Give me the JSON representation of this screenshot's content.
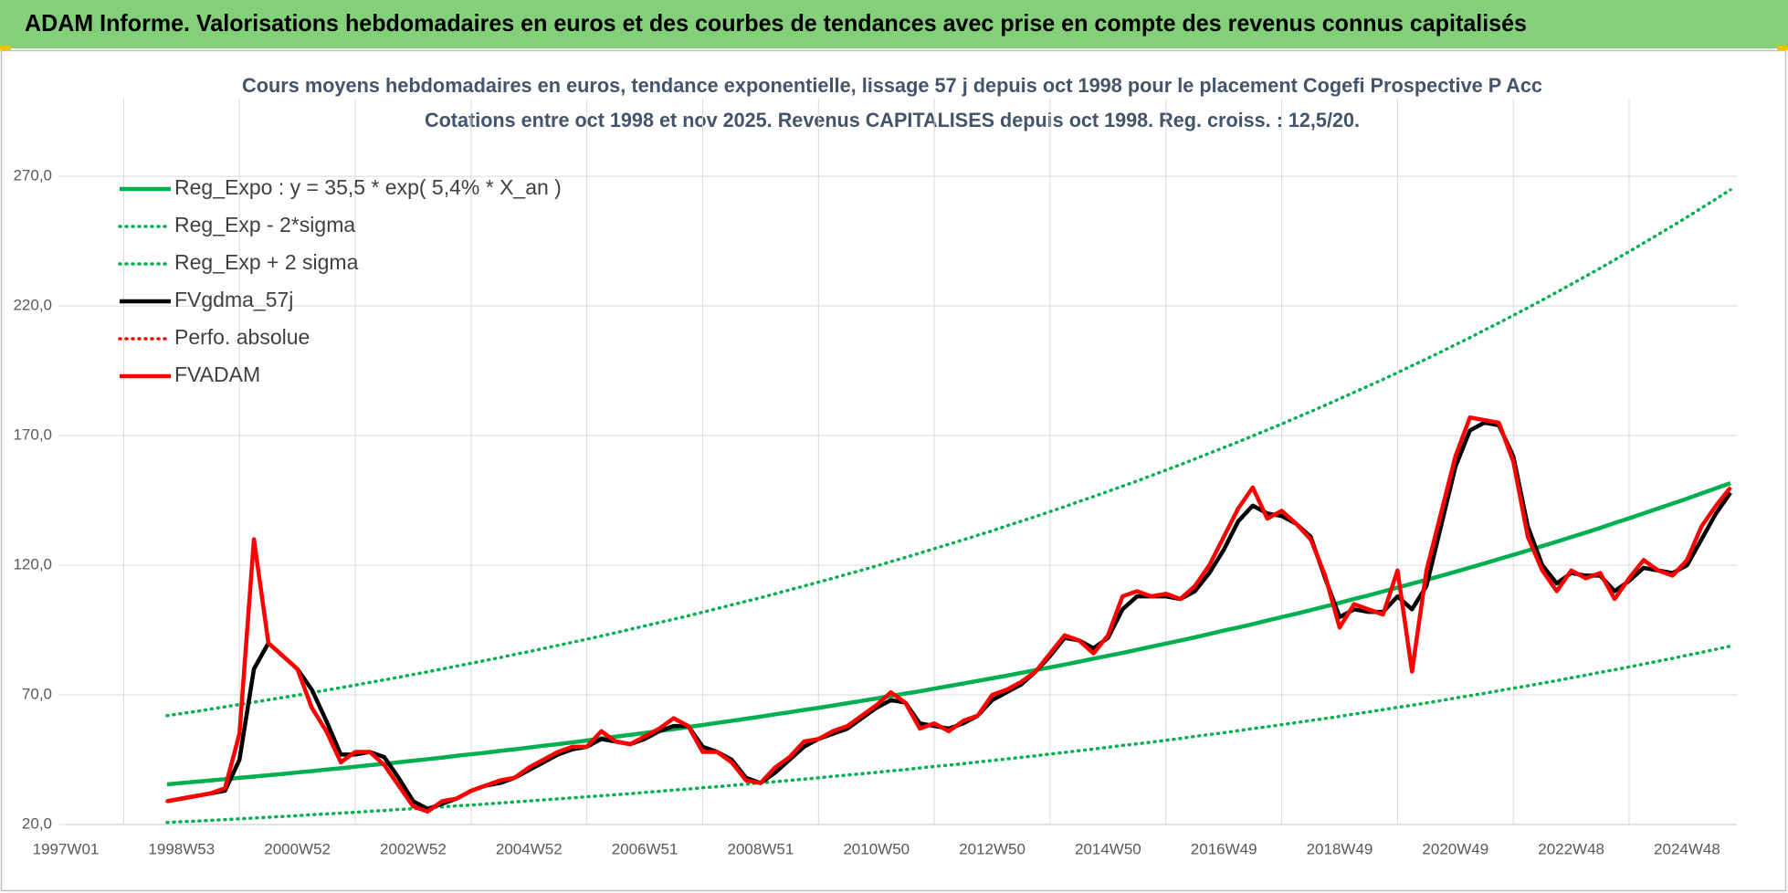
{
  "header": {
    "title": "ADAM Informe. Valorisations hebdomadaires en euros et des courbes de tendances avec prise en compte des revenus connus capitalisés"
  },
  "chart_data": {
    "type": "line",
    "title": "Cours moyens hebdomadaires en euros, tendance exponentielle, lissage 57 j depuis oct 1998 pour le placement Cogefi Prospective P Acc",
    "subtitle": "Cotations entre oct 1998 et nov 2025. Revenus CAPITALISES depuis oct 1998. Reg. croiss. : 12,5/20.",
    "categories": [
      "1997W01",
      null,
      null,
      null,
      null,
      null,
      null,
      null,
      "1998W53",
      null,
      null,
      null,
      null,
      null,
      null,
      null,
      "2000W52",
      null,
      null,
      null,
      null,
      null,
      null,
      null,
      "2002W52",
      null,
      null,
      null,
      null,
      null,
      null,
      null,
      "2004W52",
      null,
      null,
      null,
      null,
      null,
      null,
      null,
      "2006W51",
      null,
      null,
      null,
      null,
      null,
      null,
      null,
      "2008W51",
      null,
      null,
      null,
      null,
      null,
      null,
      null,
      "2010W50",
      null,
      null,
      null,
      null,
      null,
      null,
      null,
      "2012W50",
      null,
      null,
      null,
      null,
      null,
      null,
      null,
      "2014W50",
      null,
      null,
      null,
      null,
      null,
      null,
      null,
      "2016W49",
      null,
      null,
      null,
      null,
      null,
      null,
      null,
      "2018W49",
      null,
      null,
      null,
      null,
      null,
      null,
      null,
      "2020W49",
      null,
      null,
      null,
      null,
      null,
      null,
      null,
      "2022W48",
      null,
      null,
      null,
      null,
      null,
      null,
      null,
      "2024W48",
      null,
      null,
      null
    ],
    "ylim": [
      20,
      300
    ],
    "yticks": [
      {
        "value": 20,
        "label": "20,0"
      },
      {
        "value": 70,
        "label": "70,0"
      },
      {
        "value": 120,
        "label": "120,0"
      },
      {
        "value": 170,
        "label": "170,0"
      },
      {
        "value": 220,
        "label": "220,0"
      },
      {
        "value": 270,
        "label": "270,0"
      }
    ],
    "grid": true,
    "legend": "upper left",
    "series": [
      {
        "name": "Reg_Expo : y = 35,5 * exp( 5,4% *  X_an )",
        "color": "#00b050",
        "style": "solid",
        "values": [
          null,
          null,
          null,
          null,
          null,
          null,
          null,
          35.5,
          36.0,
          36.5,
          37.0,
          37.5,
          38.0,
          38.5,
          39.0,
          39.5,
          40.1,
          40.6,
          41.2,
          41.7,
          42.3,
          42.9,
          43.4,
          44.0,
          44.6,
          45.2,
          45.8,
          46.5,
          47.1,
          47.7,
          48.4,
          49.0,
          49.7,
          50.4,
          51.0,
          51.7,
          52.4,
          53.2,
          53.9,
          54.6,
          55.3,
          56.1,
          56.8,
          57.6,
          58.4,
          59.2,
          60.0,
          60.8,
          61.6,
          62.5,
          63.3,
          64.2,
          65.0,
          65.9,
          66.8,
          67.7,
          68.6,
          69.6,
          70.5,
          71.4,
          72.4,
          73.4,
          74.4,
          75.4,
          76.4,
          77.4,
          78.5,
          79.6,
          80.6,
          81.7,
          82.8,
          84.0,
          85.1,
          86.2,
          87.4,
          88.6,
          89.8,
          91.0,
          92.2,
          93.5,
          94.8,
          96.0,
          97.3,
          98.7,
          100.0,
          101.3,
          102.7,
          104.1,
          105.5,
          107.0,
          108.4,
          109.9,
          111.4,
          112.9,
          114.4,
          115.9,
          117.5,
          119.1,
          120.7,
          122.4,
          124.0,
          125.7,
          127.4,
          129.1,
          130.9,
          132.6,
          134.4,
          136.3,
          138.1,
          140.0,
          141.9,
          143.8,
          145.7,
          147.7,
          149.7,
          151.7
        ]
      },
      {
        "name": "Reg_Exp - 2*sigma",
        "color": "#00b050",
        "style": "dotted",
        "values": [
          null,
          null,
          null,
          null,
          null,
          null,
          null,
          20.8,
          21.1,
          21.3,
          21.6,
          21.9,
          22.2,
          22.5,
          22.8,
          23.1,
          23.4,
          23.8,
          24.1,
          24.4,
          24.7,
          25.1,
          25.4,
          25.8,
          26.1,
          26.5,
          26.8,
          27.2,
          27.5,
          27.9,
          28.3,
          28.7,
          29.1,
          29.5,
          29.9,
          30.3,
          30.7,
          31.1,
          31.5,
          31.9,
          32.4,
          32.8,
          33.3,
          33.7,
          34.2,
          34.6,
          35.1,
          35.6,
          36.1,
          36.5,
          37.0,
          37.5,
          38.0,
          38.6,
          39.1,
          39.6,
          40.1,
          40.7,
          41.2,
          41.8,
          42.4,
          42.9,
          43.5,
          44.1,
          44.7,
          45.3,
          45.9,
          46.5,
          47.2,
          47.8,
          48.5,
          49.1,
          49.8,
          50.5,
          51.1,
          51.8,
          52.5,
          53.2,
          54.0,
          54.7,
          55.4,
          56.2,
          57.0,
          57.7,
          58.5,
          59.3,
          60.1,
          60.9,
          61.7,
          62.6,
          63.4,
          64.3,
          65.2,
          66.0,
          66.9,
          67.8,
          68.8,
          69.7,
          70.6,
          71.6,
          72.6,
          73.5,
          74.5,
          75.5,
          76.6,
          77.6,
          78.7,
          79.7,
          80.8,
          81.9,
          83.0,
          84.1,
          85.3,
          86.4,
          87.6,
          88.8
        ]
      },
      {
        "name": "Reg_Exp + 2 sigma",
        "color": "#00b050",
        "style": "dotted",
        "values": [
          null,
          null,
          null,
          null,
          null,
          null,
          null,
          62.0,
          62.8,
          63.6,
          64.5,
          65.4,
          66.3,
          67.2,
          68.1,
          69.0,
          69.9,
          70.9,
          71.8,
          72.8,
          73.8,
          74.8,
          75.8,
          76.8,
          77.9,
          78.9,
          80.0,
          81.1,
          82.2,
          83.3,
          84.4,
          85.6,
          86.7,
          87.9,
          89.1,
          90.3,
          91.5,
          92.7,
          94.0,
          95.3,
          96.6,
          97.9,
          99.2,
          100.5,
          101.9,
          103.3,
          104.7,
          106.1,
          107.5,
          109.0,
          110.5,
          112.0,
          113.5,
          115.0,
          116.6,
          118.1,
          119.7,
          121.4,
          123.0,
          124.7,
          126.4,
          128.1,
          129.8,
          131.6,
          133.3,
          135.2,
          137.0,
          138.8,
          140.7,
          142.6,
          144.6,
          146.5,
          148.5,
          150.5,
          152.5,
          154.6,
          156.7,
          158.8,
          161.0,
          163.2,
          165.4,
          167.6,
          169.9,
          172.2,
          174.5,
          176.9,
          179.3,
          181.7,
          184.2,
          186.7,
          189.2,
          191.7,
          194.3,
          197.0,
          199.6,
          202.3,
          205.1,
          207.8,
          210.7,
          213.5,
          216.4,
          219.3,
          222.3,
          225.3,
          228.4,
          231.5,
          234.6,
          237.8,
          241.0,
          244.3,
          247.6,
          250.9,
          254.3,
          257.8,
          261.3,
          264.8
        ]
      },
      {
        "name": "FVgdma_57j",
        "color": "#000000",
        "style": "solid",
        "values": [
          null,
          null,
          null,
          null,
          null,
          null,
          null,
          29,
          30,
          31,
          32,
          33,
          45,
          80,
          90,
          85,
          80,
          72,
          60,
          47,
          47,
          48,
          46,
          38,
          29,
          26,
          28,
          30,
          33,
          35,
          36,
          38,
          41,
          44,
          47,
          49,
          50,
          53,
          52,
          51,
          53,
          56,
          58,
          58,
          50,
          48,
          45,
          38,
          36,
          40,
          45,
          50,
          53,
          55,
          57,
          61,
          65,
          68,
          67,
          59,
          58,
          57,
          59,
          62,
          68,
          71,
          74,
          79,
          85,
          92,
          91,
          88,
          92,
          103,
          108,
          108,
          108,
          107,
          110,
          117,
          126,
          137,
          143,
          140,
          139,
          136,
          131,
          115,
          100,
          103,
          102,
          102,
          108,
          103,
          112,
          135,
          158,
          172,
          175,
          174,
          162,
          135,
          120,
          113,
          117,
          116,
          116,
          110,
          114,
          119,
          118,
          117,
          120,
          130,
          140,
          148
        ]
      },
      {
        "name": "Perfo. absolue",
        "color": "#ff0000",
        "style": "dotted",
        "values": [
          null,
          null,
          null,
          null,
          null,
          null,
          null,
          29,
          30,
          31,
          32,
          34,
          55,
          130,
          90,
          85,
          80,
          65,
          56,
          44,
          48,
          48,
          43,
          35,
          27,
          25,
          29,
          30,
          33,
          35,
          37,
          38,
          42,
          45,
          48,
          50,
          50,
          56,
          52,
          51,
          54,
          57,
          61,
          58,
          48,
          48,
          44,
          37,
          36,
          42,
          46,
          52,
          53,
          56,
          58,
          62,
          66,
          71,
          67,
          57,
          59,
          56,
          60,
          62,
          70,
          72,
          75,
          79,
          86,
          93,
          91,
          86,
          93,
          108,
          110,
          108,
          109,
          107,
          112,
          120,
          131,
          142,
          150,
          138,
          141,
          136,
          130,
          116,
          96,
          105,
          103,
          101,
          118,
          79,
          118,
          140,
          162,
          177,
          176,
          175,
          160,
          131,
          118,
          110,
          118,
          115,
          117,
          107,
          115,
          122,
          118,
          116,
          122,
          135,
          143,
          150
        ]
      },
      {
        "name": "FVADAM",
        "color": "#ff0000",
        "style": "solid",
        "values": [
          null,
          null,
          null,
          null,
          null,
          null,
          null,
          29,
          30,
          31,
          32,
          34,
          55,
          130,
          90,
          85,
          80,
          65,
          56,
          44,
          48,
          48,
          43,
          35,
          27,
          25,
          29,
          30,
          33,
          35,
          37,
          38,
          42,
          45,
          48,
          50,
          50,
          56,
          52,
          51,
          54,
          57,
          61,
          58,
          48,
          48,
          44,
          37,
          36,
          42,
          46,
          52,
          53,
          56,
          58,
          62,
          66,
          71,
          67,
          57,
          59,
          56,
          60,
          62,
          70,
          72,
          75,
          79,
          86,
          93,
          91,
          86,
          93,
          108,
          110,
          108,
          109,
          107,
          112,
          120,
          131,
          142,
          150,
          138,
          141,
          136,
          130,
          116,
          96,
          105,
          103,
          101,
          118,
          79,
          118,
          140,
          162,
          177,
          176,
          175,
          160,
          131,
          118,
          110,
          118,
          115,
          117,
          107,
          115,
          122,
          118,
          116,
          122,
          135,
          143,
          150
        ]
      }
    ]
  }
}
